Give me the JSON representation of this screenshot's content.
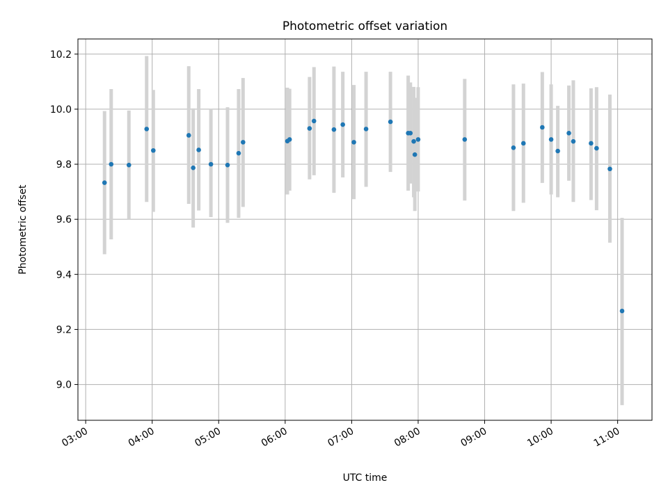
{
  "chart_data": {
    "type": "scatter",
    "title": "Photometric offset variation",
    "xlabel": "UTC time",
    "ylabel": "Photometric offset",
    "xlim": [
      "02:53",
      "11:31"
    ],
    "ylim": [
      8.87,
      10.255
    ],
    "x_ticks": [
      "03:00",
      "04:00",
      "05:00",
      "06:00",
      "07:00",
      "08:00",
      "09:00",
      "10:00",
      "11:00"
    ],
    "y_ticks": [
      "9.0",
      "9.2",
      "9.4",
      "9.6",
      "9.8",
      "10.0",
      "10.2"
    ],
    "grid": true,
    "legend": "none",
    "colors": {
      "points": "#1f77b4",
      "error_bars": "#d3d3d3",
      "grid": "#b0b0b0"
    },
    "series": [
      {
        "x": [
          "03:17",
          "03:23",
          "03:39",
          "03:55",
          "04:01",
          "04:33",
          "04:37",
          "04:42",
          "04:53",
          "05:08",
          "05:18",
          "05:22",
          "06:02",
          "06:04",
          "06:22",
          "06:26",
          "06:44",
          "06:52",
          "07:02",
          "07:13",
          "07:35",
          "07:51",
          "07:53",
          "07:56",
          "07:57",
          "08:00",
          "08:42",
          "09:26",
          "09:35",
          "09:52",
          "10:00",
          "10:06",
          "10:16",
          "10:20",
          "10:36",
          "10:41",
          "10:53",
          "11:04"
        ],
        "y": [
          9.733,
          9.8,
          9.797,
          9.928,
          9.85,
          9.905,
          9.787,
          9.852,
          9.8,
          9.797,
          9.84,
          9.88,
          9.884,
          9.89,
          9.93,
          9.957,
          9.926,
          9.944,
          9.88,
          9.928,
          9.954,
          9.913,
          9.913,
          9.883,
          9.835,
          9.89,
          9.89,
          9.86,
          9.876,
          9.934,
          9.89,
          9.848,
          9.913,
          9.883,
          9.876,
          9.858,
          9.783,
          9.267
        ],
        "y_low": [
          9.473,
          9.527,
          9.6,
          9.663,
          9.627,
          9.656,
          9.57,
          9.632,
          9.608,
          9.587,
          9.605,
          9.645,
          9.69,
          9.704,
          9.745,
          9.76,
          9.696,
          9.752,
          9.673,
          9.718,
          9.772,
          9.704,
          9.73,
          9.68,
          9.63,
          9.701,
          9.668,
          9.63,
          9.66,
          9.732,
          9.69,
          9.68,
          9.74,
          9.663,
          9.67,
          9.633,
          9.515,
          8.925
        ],
        "y_high": [
          9.993,
          10.073,
          9.995,
          10.193,
          10.07,
          10.156,
          10.003,
          10.073,
          10.0,
          10.007,
          10.073,
          10.113,
          10.078,
          10.074,
          10.117,
          10.153,
          10.155,
          10.136,
          10.088,
          10.136,
          10.136,
          10.122,
          10.097,
          10.081,
          10.041,
          10.08,
          10.11,
          10.09,
          10.093,
          10.135,
          10.09,
          10.012,
          10.086,
          10.105,
          10.076,
          10.08,
          10.053,
          9.605
        ]
      }
    ]
  }
}
